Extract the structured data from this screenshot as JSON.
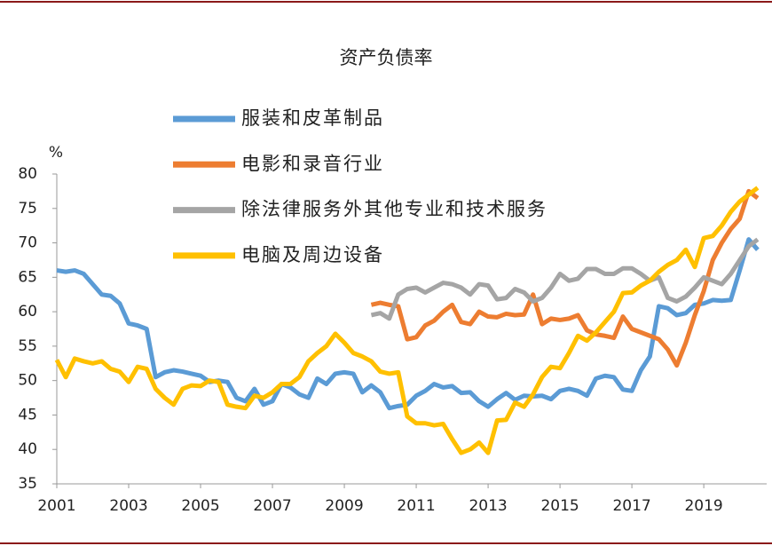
{
  "chart_data": {
    "type": "line",
    "title": "资产负债率",
    "ylabel": "%",
    "x": [
      2001,
      2001.25,
      2001.5,
      2001.75,
      2002,
      2002.25,
      2002.5,
      2002.75,
      2003,
      2003.25,
      2003.5,
      2003.75,
      2004,
      2004.25,
      2004.5,
      2004.75,
      2005,
      2005.25,
      2005.5,
      2005.75,
      2006,
      2006.25,
      2006.5,
      2006.75,
      2007,
      2007.25,
      2007.5,
      2007.75,
      2008,
      2008.25,
      2008.5,
      2008.75,
      2009,
      2009.25,
      2009.5,
      2009.75,
      2010,
      2010.25,
      2010.5,
      2010.75,
      2011,
      2011.25,
      2011.5,
      2011.75,
      2012,
      2012.25,
      2012.5,
      2012.75,
      2013,
      2013.25,
      2013.5,
      2013.75,
      2014,
      2014.25,
      2014.5,
      2014.75,
      2015,
      2015.25,
      2015.5,
      2015.75,
      2016,
      2016.25,
      2016.5,
      2016.75,
      2017,
      2017.25,
      2017.5,
      2017.75,
      2018,
      2018.25,
      2018.5,
      2018.75,
      2019,
      2019.25,
      2019.5,
      2019.75,
      2020,
      2020.25,
      2020.5
    ],
    "series": [
      {
        "name": "服装和皮革制品",
        "color": "#5b9bd5",
        "values": [
          66,
          65.8,
          66,
          65.5,
          64,
          62.5,
          62.3,
          61.2,
          58.3,
          58,
          57.5,
          50.5,
          51.2,
          51.5,
          51.3,
          51,
          50.7,
          49.8,
          50,
          49.8,
          47.5,
          47,
          48.8,
          46.5,
          47,
          49.5,
          49,
          48,
          47.5,
          50.3,
          49.5,
          51,
          51.2,
          51,
          48.3,
          49.3,
          48.3,
          46,
          46.3,
          46.5,
          47.8,
          48.5,
          49.5,
          49,
          49.2,
          48.2,
          48.3,
          47,
          46.2,
          47.3,
          48.2,
          47.2,
          47.8,
          47.7,
          47.8,
          47.3,
          48.5,
          48.8,
          48.5,
          47.8,
          50.3,
          50.7,
          50.5,
          48.7,
          48.5,
          51.5,
          53.5,
          60.8,
          60.5,
          59.5,
          59.8,
          61,
          61.2,
          61.7,
          61.6,
          61.7,
          66,
          70.5,
          69
        ]
      },
      {
        "name": "电影和录音行业",
        "color": "#ed7d31",
        "values": [
          null,
          null,
          null,
          null,
          null,
          null,
          null,
          null,
          null,
          null,
          null,
          null,
          null,
          null,
          null,
          null,
          null,
          null,
          null,
          null,
          null,
          null,
          null,
          null,
          null,
          null,
          null,
          null,
          null,
          null,
          null,
          null,
          null,
          null,
          null,
          61,
          61.3,
          61,
          60.8,
          56,
          56.3,
          58,
          58.7,
          60,
          61,
          58.5,
          58.2,
          60,
          59.3,
          59.2,
          59.7,
          59.5,
          59.6,
          62.5,
          58.2,
          59,
          58.8,
          59,
          59.5,
          57.3,
          56.7,
          56.5,
          56.2,
          59.3,
          57.5,
          57,
          56.5,
          56,
          54.5,
          52.2,
          55.5,
          59.5,
          63,
          67.5,
          70,
          72,
          73.5,
          77.5,
          76.5
        ]
      },
      {
        "name": "除法律服务外其他专业和技术服务",
        "color": "#a5a5a5",
        "values": [
          null,
          null,
          null,
          null,
          null,
          null,
          null,
          null,
          null,
          null,
          null,
          null,
          null,
          null,
          null,
          null,
          null,
          null,
          null,
          null,
          null,
          null,
          null,
          null,
          null,
          null,
          null,
          null,
          null,
          null,
          null,
          null,
          null,
          null,
          null,
          59.5,
          59.8,
          59,
          62.5,
          63.3,
          63.5,
          62.8,
          63.5,
          64.2,
          64,
          63.5,
          62.5,
          64,
          63.8,
          61.8,
          62,
          63.3,
          62.8,
          61.5,
          62,
          63.5,
          65.5,
          64.5,
          64.8,
          66.2,
          66.2,
          65.5,
          65.5,
          66.3,
          66.3,
          65.5,
          64.5,
          65,
          62,
          61.5,
          62.2,
          63.5,
          65,
          64.5,
          64,
          65.5,
          67.5,
          69.5,
          70.5
        ]
      },
      {
        "name": "电脑及周边设备",
        "color": "#ffc000",
        "values": [
          53,
          50.5,
          53.2,
          52.8,
          52.5,
          52.8,
          51.7,
          51.3,
          49.8,
          52,
          51.7,
          48.8,
          47.5,
          46.5,
          48.8,
          49.3,
          49.2,
          50,
          49.8,
          46.5,
          46.2,
          46,
          47.8,
          47.5,
          48.3,
          49.5,
          49.5,
          50.5,
          52.8,
          54,
          55,
          56.8,
          55.5,
          54,
          53.5,
          52.8,
          51.3,
          51,
          51.2,
          44.8,
          43.8,
          43.8,
          43.5,
          43.7,
          41.5,
          39.5,
          40,
          41,
          39.5,
          44.2,
          44.3,
          46.8,
          46.2,
          48,
          50.5,
          52,
          51.8,
          54,
          56.5,
          55.8,
          57,
          58.5,
          60,
          62.7,
          62.8,
          63.8,
          64.5,
          65.8,
          66.8,
          67.5,
          69,
          66.5,
          70.7,
          71,
          72.5,
          74.5,
          76,
          77,
          78
        ]
      }
    ],
    "xlim": [
      2001,
      2020.75
    ],
    "xticks": [
      2001,
      2003,
      2005,
      2007,
      2009,
      2011,
      2013,
      2015,
      2017,
      2019
    ],
    "ylim": [
      35,
      80
    ],
    "yticks": [
      35,
      40,
      45,
      50,
      55,
      60,
      65,
      70,
      75,
      80
    ],
    "grid": false,
    "legend": "upper left"
  }
}
